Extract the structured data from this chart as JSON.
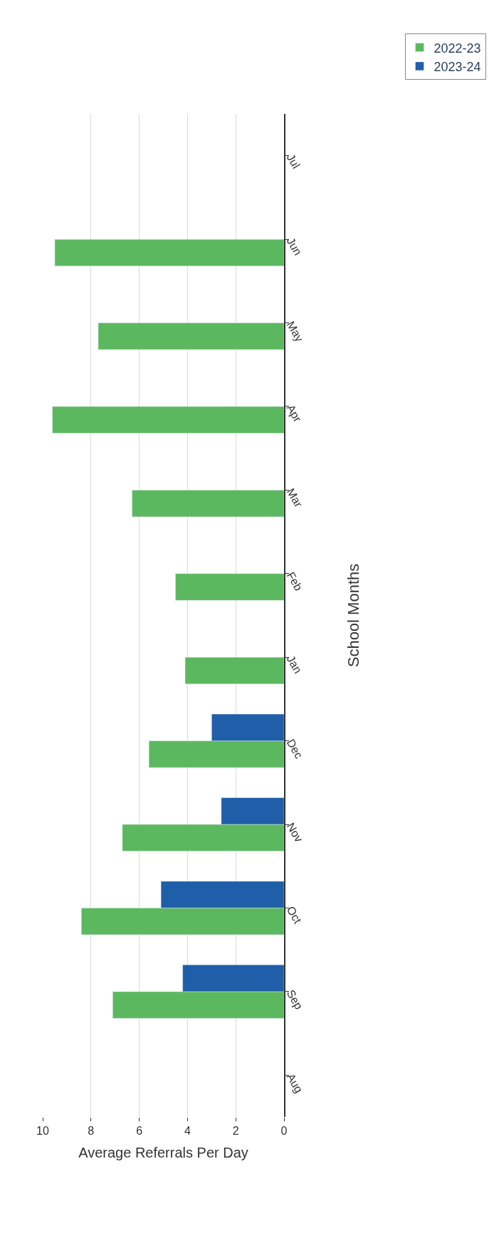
{
  "chart_data": {
    "type": "bar",
    "orientation": "horizontal",
    "xlabel": "Average Referrals Per Day",
    "ylabel": "School Months",
    "categories": [
      "Jul",
      "Jun",
      "May",
      "Apr",
      "Mar",
      "Feb",
      "Jan",
      "Dec",
      "Nov",
      "Oct",
      "Sep",
      "Aug"
    ],
    "series": [
      {
        "name": "2022-23",
        "color": "#5cb85f",
        "values": [
          null,
          9.5,
          7.7,
          9.6,
          6.3,
          4.5,
          4.1,
          5.6,
          6.7,
          8.4,
          7.1,
          null
        ]
      },
      {
        "name": "2023-24",
        "color": "#1f5ea8",
        "values": [
          null,
          null,
          null,
          null,
          null,
          null,
          null,
          3.0,
          2.6,
          5.1,
          4.2,
          null
        ]
      }
    ],
    "xlim": [
      10,
      0
    ],
    "xticks": [
      0,
      2,
      4,
      6,
      8,
      10
    ],
    "grid": "x",
    "legend": "top right"
  }
}
